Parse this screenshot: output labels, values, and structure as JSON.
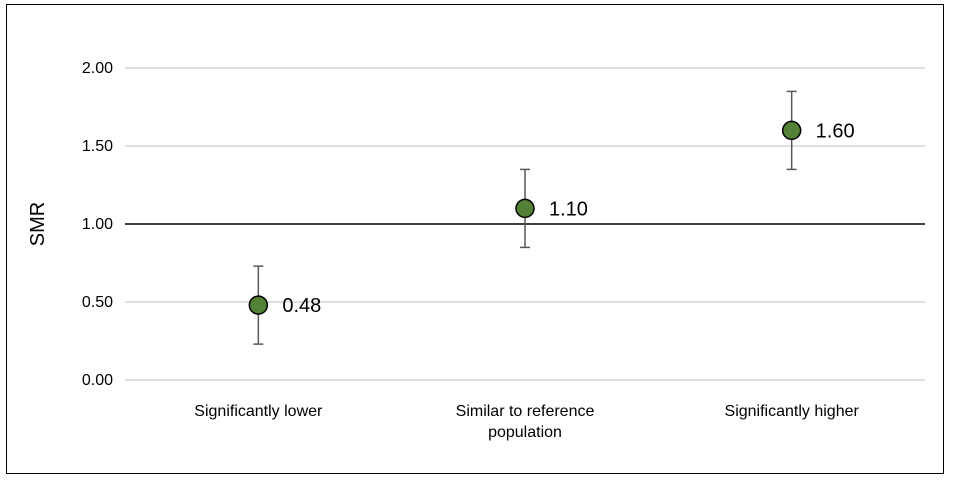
{
  "chart_data": {
    "type": "scatter",
    "title": "",
    "xlabel": "",
    "ylabel": "SMR",
    "ylim": [
      0,
      2
    ],
    "yticks": [
      "0.00",
      "0.50",
      "1.00",
      "1.50",
      "2.00"
    ],
    "grid": true,
    "reference_line": 1.0,
    "categories": [
      [
        "Significantly lower"
      ],
      [
        "Similar to reference",
        "population"
      ],
      [
        "Significantly higher"
      ]
    ],
    "values": [
      0.48,
      1.1,
      1.6
    ],
    "value_labels": [
      "0.48",
      "1.10",
      "1.60"
    ],
    "error_low": [
      0.23,
      0.85,
      1.35
    ],
    "error_high": [
      0.73,
      1.35,
      1.85
    ],
    "colors": {
      "marker_fill": "#538135",
      "marker_stroke": "#000000",
      "gridline": "#bfbfbf",
      "errorbar": "#595959",
      "reference_line": "#000000"
    }
  }
}
